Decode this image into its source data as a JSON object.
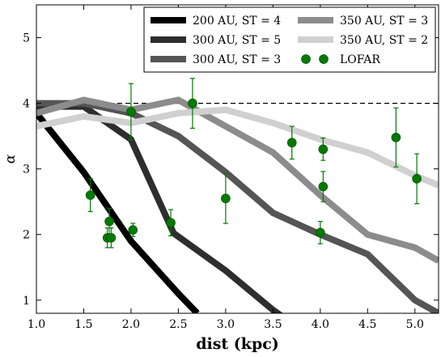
{
  "chart_data": {
    "type": "line",
    "xlabel": "dist (kpc)",
    "ylabel": "α",
    "xlim": [
      1.0,
      5.25
    ],
    "ylim": [
      0.8,
      5.5
    ],
    "x_ticks": [
      1.0,
      1.5,
      2.0,
      2.5,
      3.0,
      3.5,
      4.0,
      4.5,
      5.0
    ],
    "x_tick_labels": [
      "1.0",
      "1.5",
      "2.0",
      "2.5",
      "3.0",
      "3.5",
      "4.0",
      "4.5",
      "5.0"
    ],
    "y_ticks": [
      1,
      2,
      3,
      4,
      5
    ],
    "y_tick_labels": [
      "1",
      "2",
      "3",
      "4",
      "5"
    ],
    "grid": false,
    "legend_position": "top-right",
    "reference_line": {
      "y": 4.0,
      "style": "dashed",
      "color": "#000000"
    },
    "series": [
      {
        "name": "200 AU, ST = 4",
        "color": "#000000",
        "x": [
          1.0,
          1.5,
          2.0,
          2.5,
          2.7
        ],
        "y": [
          3.85,
          2.95,
          1.9,
          1.1,
          0.8
        ]
      },
      {
        "name": "300 AU, ST = 5",
        "color": "#2e2e2e",
        "x": [
          1.0,
          1.5,
          2.0,
          2.45,
          3.0,
          3.5,
          3.6
        ],
        "y": [
          3.95,
          3.95,
          3.45,
          2.02,
          1.45,
          0.85,
          0.75
        ]
      },
      {
        "name": "300 AU, ST = 3",
        "color": "#555555",
        "x": [
          1.0,
          1.5,
          2.0,
          2.5,
          3.0,
          3.5,
          4.0,
          4.5,
          5.0,
          5.25
        ],
        "y": [
          4.0,
          4.0,
          3.85,
          3.5,
          2.95,
          2.33,
          2.0,
          1.7,
          1.0,
          0.8
        ]
      },
      {
        "name": "350 AU, ST = 3",
        "color": "#8c8c8c",
        "x": [
          1.0,
          1.5,
          2.0,
          2.5,
          3.0,
          3.5,
          4.0,
          4.5,
          5.0,
          5.25
        ],
        "y": [
          3.85,
          4.05,
          3.9,
          4.05,
          3.65,
          3.25,
          2.6,
          2.0,
          1.8,
          1.6
        ]
      },
      {
        "name": "350 AU, ST = 2",
        "color": "#d0d0d0",
        "x": [
          1.0,
          1.5,
          2.0,
          2.5,
          3.0,
          3.5,
          4.0,
          4.5,
          5.0,
          5.25
        ],
        "y": [
          3.65,
          3.8,
          3.7,
          3.85,
          3.9,
          3.7,
          3.45,
          3.25,
          2.9,
          2.75
        ]
      }
    ],
    "observations": {
      "name": "LOFAR",
      "color": "#007a00",
      "points": [
        {
          "x": 1.57,
          "y": 2.6,
          "err": 0.25
        },
        {
          "x": 1.75,
          "y": 1.95,
          "err": 0.15
        },
        {
          "x": 1.77,
          "y": 2.2,
          "err": 0.2
        },
        {
          "x": 1.79,
          "y": 1.95,
          "err": 0.15
        },
        {
          "x": 2.02,
          "y": 2.07,
          "err": 0.1
        },
        {
          "x": 2.0,
          "y": 3.87,
          "err": 0.43
        },
        {
          "x": 2.42,
          "y": 2.18,
          "err": 0.2
        },
        {
          "x": 2.65,
          "y": 4.0,
          "err": 0.38
        },
        {
          "x": 3.0,
          "y": 2.55,
          "err": 0.38
        },
        {
          "x": 3.7,
          "y": 3.4,
          "err": 0.25
        },
        {
          "x": 4.0,
          "y": 2.03,
          "err": 0.17
        },
        {
          "x": 4.03,
          "y": 3.3,
          "err": 0.17
        },
        {
          "x": 4.03,
          "y": 2.73,
          "err": 0.23
        },
        {
          "x": 4.8,
          "y": 3.48,
          "err": 0.45
        },
        {
          "x": 5.02,
          "y": 2.85,
          "err": 0.38
        }
      ]
    }
  }
}
